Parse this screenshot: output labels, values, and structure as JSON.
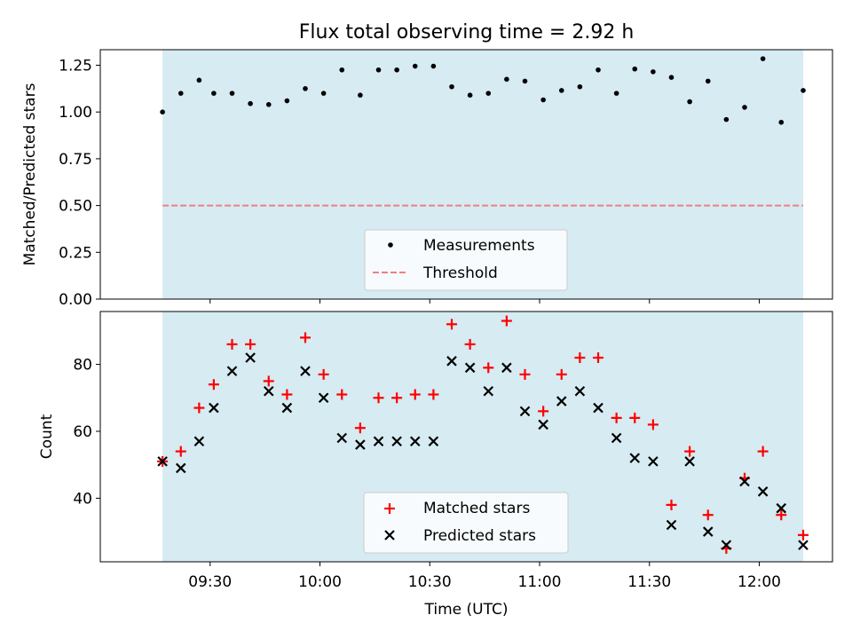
{
  "chart_data": [
    {
      "type": "scatter",
      "title": "Flux total observing time = 2.92 h",
      "ylabel": "Matched/Predicted stars",
      "xlabel": "",
      "xlim": [
        9.0,
        12.3333
      ],
      "ylim": [
        0.0,
        1.333
      ],
      "yticks": [
        0.0,
        0.25,
        0.5,
        0.75,
        1.0,
        1.25
      ],
      "ytick_labels": [
        "0.00",
        "0.25",
        "0.50",
        "0.75",
        "1.00",
        "1.25"
      ],
      "shaded_span": [
        9.2833,
        12.2
      ],
      "threshold": 0.5,
      "legend": [
        "Measurements",
        "Threshold"
      ],
      "series": [
        {
          "name": "Measurements",
          "x": [
            9.2833,
            9.3667,
            9.45,
            9.5167,
            9.6,
            9.6833,
            9.7667,
            9.85,
            9.9333,
            10.0167,
            10.1,
            10.1833,
            10.2667,
            10.35,
            10.4333,
            10.5167,
            10.6,
            10.6833,
            10.7667,
            10.85,
            10.9333,
            11.0167,
            11.1,
            11.1833,
            11.2667,
            11.35,
            11.4333,
            11.5167,
            11.6,
            11.6833,
            11.7667,
            11.85,
            11.9333,
            12.0167,
            12.1,
            12.2
          ],
          "values": [
            1.0,
            1.1,
            1.17,
            1.1,
            1.1,
            1.045,
            1.04,
            1.06,
            1.125,
            1.1,
            1.225,
            1.09,
            1.225,
            1.225,
            1.245,
            1.245,
            1.135,
            1.09,
            1.1,
            1.175,
            1.165,
            1.065,
            1.115,
            1.135,
            1.225,
            1.1,
            1.23,
            1.215,
            1.185,
            1.055,
            1.165,
            0.96,
            1.025,
            1.285,
            0.945,
            1.115
          ]
        }
      ]
    },
    {
      "type": "scatter",
      "title": "",
      "ylabel": "Count",
      "xlabel": "Time (UTC)",
      "xlim": [
        9.0,
        12.3333
      ],
      "ylim": [
        21.0,
        95.8
      ],
      "yticks": [
        40,
        60,
        80
      ],
      "xticks": [
        9.5,
        10.0,
        10.5,
        11.0,
        11.5,
        12.0
      ],
      "xtick_labels": [
        "09:30",
        "10:00",
        "10:30",
        "11:00",
        "11:30",
        "12:00"
      ],
      "shaded_span": [
        9.2833,
        12.2
      ],
      "legend": [
        "Matched stars",
        "Predicted stars"
      ],
      "series": [
        {
          "name": "Matched stars",
          "x": [
            9.2833,
            9.3667,
            9.45,
            9.5167,
            9.6,
            9.6833,
            9.7667,
            9.85,
            9.9333,
            10.0167,
            10.1,
            10.1833,
            10.2667,
            10.35,
            10.4333,
            10.5167,
            10.6,
            10.6833,
            10.7667,
            10.85,
            10.9333,
            11.0167,
            11.1,
            11.1833,
            11.2667,
            11.35,
            11.4333,
            11.5167,
            11.6,
            11.6833,
            11.7667,
            11.85,
            11.9333,
            12.0167,
            12.1,
            12.2
          ],
          "values": [
            51,
            54,
            67,
            74,
            86,
            86,
            75,
            71,
            88,
            77,
            71,
            61,
            70,
            70,
            71,
            71,
            92,
            86,
            79,
            93,
            77,
            66,
            77,
            82,
            82,
            64,
            64,
            62,
            38,
            54,
            35,
            25,
            46,
            54,
            35,
            29
          ]
        },
        {
          "name": "Predicted stars",
          "x": [
            9.2833,
            9.3667,
            9.45,
            9.5167,
            9.6,
            9.6833,
            9.7667,
            9.85,
            9.9333,
            10.0167,
            10.1,
            10.1833,
            10.2667,
            10.35,
            10.4333,
            10.5167,
            10.6,
            10.6833,
            10.7667,
            10.85,
            10.9333,
            11.0167,
            11.1,
            11.1833,
            11.2667,
            11.35,
            11.4333,
            11.5167,
            11.6,
            11.6833,
            11.7667,
            11.85,
            11.9333,
            12.0167,
            12.1,
            12.2
          ],
          "values": [
            51,
            49,
            57,
            67,
            78,
            82,
            72,
            67,
            78,
            70,
            58,
            56,
            57,
            57,
            57,
            57,
            81,
            79,
            72,
            79,
            66,
            62,
            69,
            72,
            67,
            58,
            52,
            51,
            32,
            51,
            30,
            26,
            45,
            42,
            37,
            26
          ]
        }
      ]
    }
  ],
  "colors": {
    "span_fill": "#add8e6",
    "threshold": "#f08080",
    "matched": "#ff0000",
    "predicted": "#000000",
    "measurement": "#000000"
  }
}
